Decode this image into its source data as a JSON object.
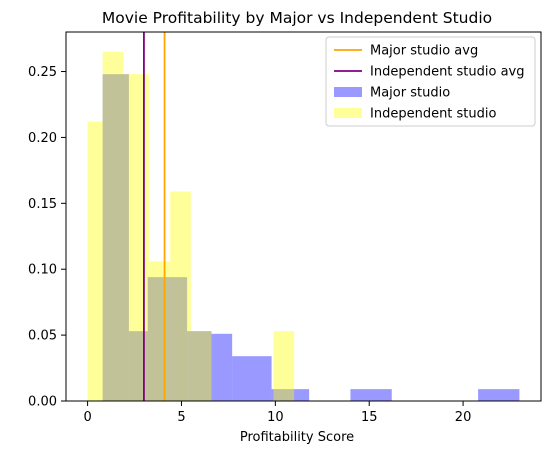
{
  "chart_data": {
    "type": "histogram",
    "title": "Movie Profitability by Major vs Independent Studio",
    "xlabel": "Profitability Score",
    "ylabel": "",
    "xlim": [
      -1.15,
      24.15
    ],
    "ylim": [
      0,
      0.28
    ],
    "xticks": [
      0,
      5,
      10,
      15,
      20
    ],
    "yticks": [
      0.0,
      0.05,
      0.1,
      0.15,
      0.2,
      0.25
    ],
    "ytick_labels": [
      "0.00",
      "0.05",
      "0.10",
      "0.15",
      "0.20",
      "0.25"
    ],
    "grid": false,
    "legend_position": "top-right",
    "series": [
      {
        "name": "Major studio",
        "color": "#0000ff",
        "alpha": 0.4,
        "bins": [
          {
            "x0": 0.8,
            "x1": 2.2,
            "y": 0.248
          },
          {
            "x0": 2.2,
            "x1": 3.2,
            "y": 0.053
          },
          {
            "x0": 3.2,
            "x1": 5.3,
            "y": 0.094
          },
          {
            "x0": 5.3,
            "x1": 6.6,
            "y": 0.053
          },
          {
            "x0": 6.6,
            "x1": 7.7,
            "y": 0.051
          },
          {
            "x0": 7.7,
            "x1": 9.8,
            "y": 0.034
          },
          {
            "x0": 9.8,
            "x1": 11.8,
            "y": 0.009
          },
          {
            "x0": 14.0,
            "x1": 16.2,
            "y": 0.009
          },
          {
            "x0": 20.8,
            "x1": 23.0,
            "y": 0.009
          }
        ]
      },
      {
        "name": "Independent studio",
        "color": "#ffff00",
        "alpha": 0.4,
        "bins": [
          {
            "x0": 0.0,
            "x1": 0.8,
            "y": 0.212
          },
          {
            "x0": 0.8,
            "x1": 1.9,
            "y": 0.265
          },
          {
            "x0": 1.9,
            "x1": 3.3,
            "y": 0.248
          },
          {
            "x0": 3.3,
            "x1": 4.4,
            "y": 0.106
          },
          {
            "x0": 4.4,
            "x1": 5.5,
            "y": 0.159
          },
          {
            "x0": 5.5,
            "x1": 6.6,
            "y": 0.053
          },
          {
            "x0": 9.9,
            "x1": 11.0,
            "y": 0.053
          }
        ]
      }
    ],
    "vlines": [
      {
        "name": "Major studio avg",
        "x": 4.1,
        "color": "#ffa500"
      },
      {
        "name": "Independent studio avg",
        "x": 3.0,
        "color": "#800080"
      }
    ],
    "legend": [
      {
        "label": "Major studio avg",
        "kind": "line",
        "color": "#ffa500"
      },
      {
        "label": "Independent studio avg",
        "kind": "line",
        "color": "#800080"
      },
      {
        "label": "Major studio",
        "kind": "patch",
        "color": "#0000ff",
        "alpha": 0.4
      },
      {
        "label": "Independent studio",
        "kind": "patch",
        "color": "#ffff00",
        "alpha": 0.4
      }
    ]
  }
}
